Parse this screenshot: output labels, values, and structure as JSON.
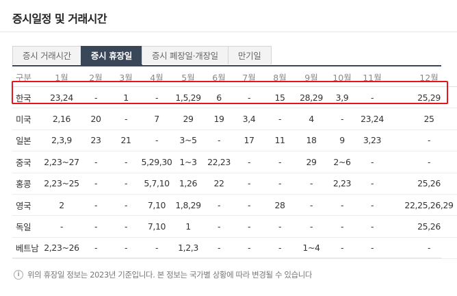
{
  "page": {
    "title": "증시일정 및 거래시간"
  },
  "tabs": [
    {
      "label": "증시 거래시간",
      "active": false
    },
    {
      "label": "증시 휴장일",
      "active": true
    },
    {
      "label": "증시 폐장일·개장일",
      "active": false
    },
    {
      "label": "만기일",
      "active": false
    }
  ],
  "table": {
    "headers": [
      "구분",
      "1월",
      "2월",
      "3월",
      "4월",
      "5월",
      "6월",
      "7월",
      "8월",
      "9월",
      "10월",
      "11월",
      "12월"
    ],
    "rows": [
      [
        "한국",
        "23,24",
        "-",
        "1",
        "-",
        "1,5,29",
        "6",
        "-",
        "15",
        "28,29",
        "3,9",
        "-",
        "25,29"
      ],
      [
        "미국",
        "2,16",
        "20",
        "-",
        "7",
        "29",
        "19",
        "3,4",
        "-",
        "4",
        "-",
        "23,24",
        "25"
      ],
      [
        "일본",
        "2,3,9",
        "23",
        "21",
        "-",
        "3~5",
        "-",
        "17",
        "11",
        "18",
        "9",
        "3,23",
        "-"
      ],
      [
        "중국",
        "2,23~27",
        "-",
        "-",
        "5,29,30",
        "1~3",
        "22,23",
        "-",
        "-",
        "29",
        "2~6",
        "-",
        "-"
      ],
      [
        "홍콩",
        "2,23~25",
        "-",
        "-",
        "5,7,10",
        "1,26",
        "22",
        "-",
        "-",
        "-",
        "2,23",
        "-",
        "25,26"
      ],
      [
        "영국",
        "2",
        "-",
        "-",
        "7,10",
        "1,8,29",
        "-",
        "-",
        "28",
        "-",
        "-",
        "-",
        "22,25,26,29"
      ],
      [
        "독일",
        "-",
        "-",
        "-",
        "7,10",
        "1",
        "-",
        "-",
        "-",
        "-",
        "-",
        "-",
        "25,26"
      ],
      [
        "베트남",
        "2,23~26",
        "-",
        "-",
        "-",
        "1,2,3",
        "-",
        "-",
        "-",
        "1~4",
        "-",
        "-",
        "-"
      ]
    ]
  },
  "note": {
    "icon": "info-icon",
    "text": "위의 휴장일 정보는 2023년 기준입니다. 본 정보는 국가별 상황에 따라 변경될 수 있습니다"
  }
}
